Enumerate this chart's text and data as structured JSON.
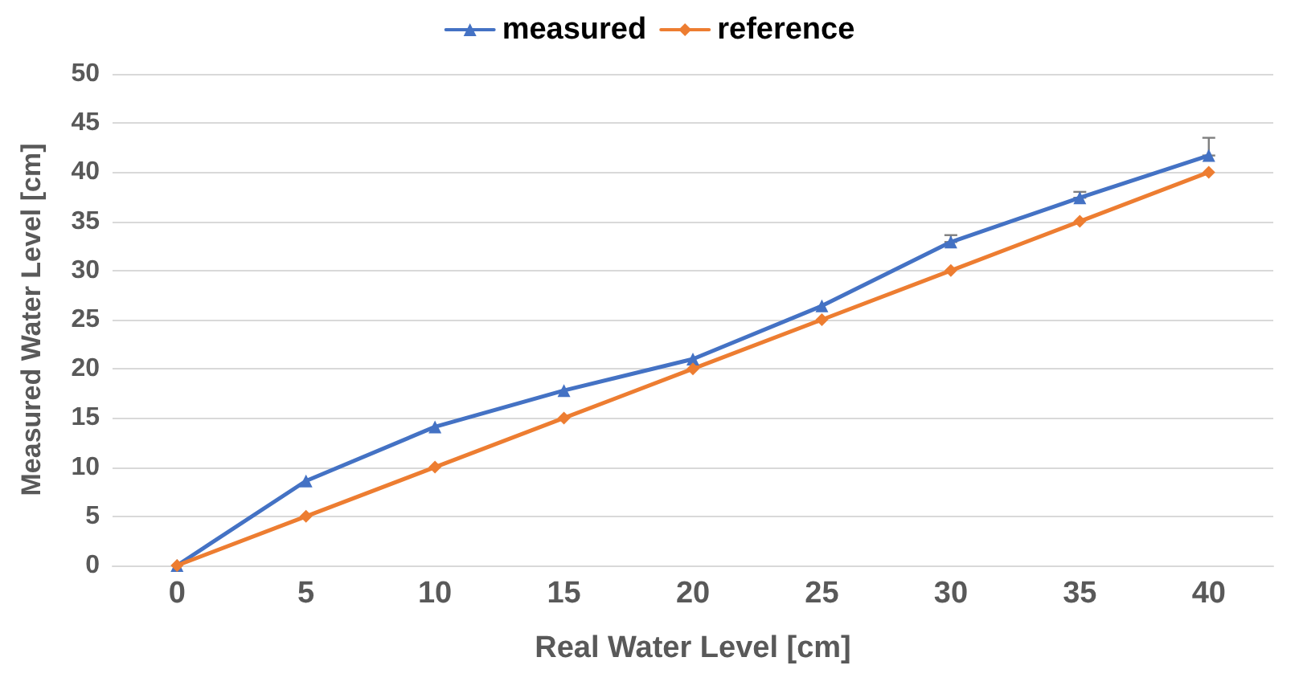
{
  "chart_data": {
    "type": "line",
    "xlabel": "Real Water Level [cm]",
    "ylabel": "Measured Water Level [cm]",
    "x": [
      0,
      5,
      10,
      15,
      20,
      25,
      30,
      35,
      40
    ],
    "series": [
      {
        "name": "measured",
        "color": "#4472c4",
        "marker": "triangle",
        "values": [
          0,
          8.6,
          14.1,
          17.8,
          21.0,
          26.4,
          32.9,
          37.4,
          41.7
        ],
        "errors": [
          null,
          null,
          null,
          null,
          null,
          null,
          [
            32.9,
            33.6
          ],
          [
            37.4,
            38.0
          ],
          [
            41.7,
            43.5
          ]
        ]
      },
      {
        "name": "reference",
        "color": "#ed7d31",
        "marker": "diamond",
        "values": [
          0,
          5,
          10,
          15,
          20,
          25,
          30,
          35,
          40
        ]
      }
    ],
    "xlim": [
      -2.5,
      42.5
    ],
    "xticks": [
      0,
      5,
      10,
      15,
      20,
      25,
      30,
      35,
      40
    ],
    "ylim": [
      0,
      50
    ],
    "yticks": [
      0,
      5,
      10,
      15,
      20,
      25,
      30,
      35,
      40,
      45,
      50
    ],
    "grid": "y",
    "legend": "top"
  }
}
